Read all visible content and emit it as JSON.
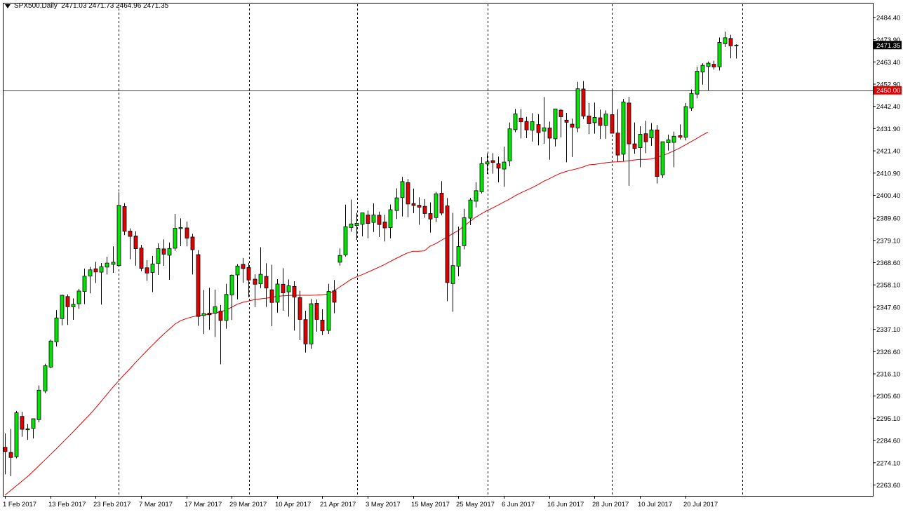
{
  "header": {
    "symbol": "SPX500,Daily",
    "ohlc": "2471.03 2471.73 2464.96 2471.35"
  },
  "chart_data": {
    "type": "candlestick",
    "symbol": "SPX500",
    "timeframe": "Daily",
    "ylim": [
      2258.8,
      2488.0
    ],
    "y_ticks": [
      "2484.40",
      "2473.90",
      "2463.40",
      "2452.90",
      "2442.40",
      "2431.90",
      "2421.40",
      "2410.90",
      "2400.40",
      "2389.60",
      "2379.10",
      "2368.60",
      "2358.10",
      "2347.60",
      "2337.10",
      "2326.60",
      "2316.10",
      "2305.60",
      "2295.10",
      "2284.60",
      "2274.10",
      "2263.60"
    ],
    "x_ticks": [
      {
        "label": "1 Feb 2017",
        "index": 0
      },
      {
        "label": "13 Feb 2017",
        "index": 8
      },
      {
        "label": "23 Feb 2017",
        "index": 16
      },
      {
        "label": "7 Mar 2017",
        "index": 24
      },
      {
        "label": "17 Mar 2017",
        "index": 32
      },
      {
        "label": "29 Mar 2017",
        "index": 40
      },
      {
        "label": "10 Apr 2017",
        "index": 48
      },
      {
        "label": "21 Apr 2017",
        "index": 56
      },
      {
        "label": "3 May 2017",
        "index": 64
      },
      {
        "label": "15 May 2017",
        "index": 72
      },
      {
        "label": "25 May 2017",
        "index": 80
      },
      {
        "label": "6 Jun 2017",
        "index": 88
      },
      {
        "label": "16 Jun 2017",
        "index": 96
      },
      {
        "label": "28 Jun 2017",
        "index": 104
      },
      {
        "label": "10 Jul 2017",
        "index": 112
      },
      {
        "label": "20 Jul 2017",
        "index": 120
      }
    ],
    "period_separators": [
      20,
      43,
      62,
      85,
      107,
      130
    ],
    "horizontal_line": {
      "value": 2450.0,
      "label": "2450.00",
      "color": "#e00000"
    },
    "current_price": {
      "value": 2471.35,
      "label": "2471.35"
    },
    "colors": {
      "bull": "#00e600",
      "bear": "#e00000",
      "wick": "#000000",
      "ma": "#e00000"
    },
    "candles": [
      [
        2281.4,
        2288.0,
        2268.6,
        2279.4
      ],
      [
        2279.0,
        2290.1,
        2267.8,
        2276.6
      ],
      [
        2277.0,
        2298.6,
        2276.2,
        2297.7
      ],
      [
        2296.0,
        2298.2,
        2286.4,
        2289.9
      ],
      [
        2289.7,
        2292.3,
        2285.0,
        2290.1
      ],
      [
        2290.3,
        2293.6,
        2285.6,
        2294.9
      ],
      [
        2294.5,
        2310.6,
        2293.2,
        2308.4
      ],
      [
        2308.0,
        2320.8,
        2307.0,
        2319.9
      ],
      [
        2319.3,
        2332.3,
        2318.8,
        2331.6
      ],
      [
        2331.2,
        2346.2,
        2329.0,
        2342.5
      ],
      [
        2342.2,
        2353.5,
        2339.0,
        2353.2
      ],
      [
        2352.6,
        2353.6,
        2339.2,
        2347.8
      ],
      [
        2347.8,
        2351.7,
        2341.6,
        2348.9
      ],
      [
        2349.2,
        2356.2,
        2346.8,
        2355.2
      ],
      [
        2355.0,
        2365.8,
        2349.0,
        2362.2
      ],
      [
        2362.3,
        2366.6,
        2354.1,
        2365.2
      ],
      [
        2365.7,
        2369.0,
        2359.0,
        2364.2
      ],
      [
        2364.1,
        2368.4,
        2348.8,
        2366.7
      ],
      [
        2366.5,
        2371.4,
        2363.0,
        2368.4
      ],
      [
        2367.8,
        2376.3,
        2363.8,
        2368.8
      ],
      [
        2367.2,
        2401.8,
        2366.6,
        2395.7
      ],
      [
        2395.1,
        2396.7,
        2381.6,
        2383.4
      ],
      [
        2383.5,
        2384.8,
        2370.2,
        2381.0
      ],
      [
        2381.2,
        2383.4,
        2367.2,
        2375.2
      ],
      [
        2375.5,
        2377.0,
        2364.6,
        2365.9
      ],
      [
        2366.2,
        2369.8,
        2360.0,
        2363.7
      ],
      [
        2364.0,
        2371.8,
        2354.7,
        2368.0
      ],
      [
        2368.2,
        2377.7,
        2362.8,
        2375.2
      ],
      [
        2375.1,
        2379.6,
        2367.1,
        2372.6
      ],
      [
        2372.1,
        2378.1,
        2360.5,
        2375.3
      ],
      [
        2375.4,
        2391.6,
        2374.2,
        2384.8
      ],
      [
        2384.7,
        2389.5,
        2376.4,
        2385.2
      ],
      [
        2385.0,
        2388.0,
        2376.3,
        2380.2
      ],
      [
        2380.7,
        2382.2,
        2363.0,
        2374.7
      ],
      [
        2372.4,
        2374.5,
        2338.8,
        2343.2
      ],
      [
        2343.6,
        2355.7,
        2334.9,
        2344.6
      ],
      [
        2344.8,
        2356.7,
        2336.9,
        2344.0
      ],
      [
        2344.7,
        2355.9,
        2333.5,
        2347.8
      ],
      [
        2345.7,
        2348.6,
        2320.6,
        2341.3
      ],
      [
        2341.3,
        2358.6,
        2337.4,
        2353.6
      ],
      [
        2353.3,
        2363.0,
        2341.5,
        2362.7
      ],
      [
        2362.8,
        2367.9,
        2351.3,
        2367.0
      ],
      [
        2367.8,
        2370.8,
        2359.1,
        2365.8
      ],
      [
        2366.3,
        2368.5,
        2352.3,
        2360.4
      ],
      [
        2360.8,
        2363.1,
        2347.6,
        2358.4
      ],
      [
        2358.6,
        2375.9,
        2356.6,
        2363.1
      ],
      [
        2362.1,
        2368.3,
        2347.7,
        2356.6
      ],
      [
        2355.8,
        2367.6,
        2338.6,
        2349.8
      ],
      [
        2349.9,
        2360.8,
        2345.0,
        2358.5
      ],
      [
        2358.4,
        2366.0,
        2345.9,
        2354.3
      ],
      [
        2354.8,
        2360.7,
        2343.1,
        2357.7
      ],
      [
        2357.4,
        2359.8,
        2336.5,
        2352.3
      ],
      [
        2352.1,
        2355.3,
        2332.0,
        2341.8
      ],
      [
        2341.7,
        2345.9,
        2326.1,
        2330.2
      ],
      [
        2330.2,
        2351.4,
        2327.9,
        2349.2
      ],
      [
        2349.4,
        2351.2,
        2336.0,
        2341.8
      ],
      [
        2341.5,
        2346.6,
        2334.4,
        2336.4
      ],
      [
        2336.6,
        2358.6,
        2335.0,
        2355.0
      ],
      [
        2355.3,
        2360.4,
        2344.7,
        2349.9
      ],
      [
        2368.8,
        2375.3,
        2367.2,
        2372.0
      ],
      [
        2372.3,
        2396.0,
        2371.5,
        2385.6
      ],
      [
        2385.2,
        2398.4,
        2383.2,
        2386.9
      ],
      [
        2386.1,
        2392.1,
        2379.3,
        2387.2
      ],
      [
        2386.7,
        2391.3,
        2381.0,
        2392.1
      ],
      [
        2391.1,
        2393.2,
        2380.1,
        2387.1
      ],
      [
        2387.6,
        2396.6,
        2383.1,
        2391.1
      ],
      [
        2391.0,
        2392.7,
        2380.7,
        2386.6
      ],
      [
        2387.8,
        2391.2,
        2378.6,
        2385.0
      ],
      [
        2385.1,
        2396.1,
        2380.1,
        2393.6
      ],
      [
        2393.2,
        2403.7,
        2389.2,
        2399.2
      ],
      [
        2399.3,
        2409.1,
        2390.4,
        2406.9
      ],
      [
        2406.4,
        2408.1,
        2390.1,
        2396.3
      ],
      [
        2396.5,
        2403.6,
        2392.0,
        2395.6
      ],
      [
        2395.7,
        2399.5,
        2386.5,
        2394.8
      ],
      [
        2395.2,
        2398.6,
        2389.8,
        2391.8
      ],
      [
        2391.8,
        2397.1,
        2382.8,
        2389.2
      ],
      [
        2389.9,
        2402.0,
        2387.8,
        2401.1
      ],
      [
        2401.4,
        2407.1,
        2391.0,
        2392.0
      ],
      [
        2395.4,
        2399.1,
        2350.4,
        2359.2
      ],
      [
        2358.7,
        2392.1,
        2345.4,
        2367.2
      ],
      [
        2366.9,
        2385.6,
        2362.2,
        2376.2
      ],
      [
        2376.6,
        2394.0,
        2374.9,
        2389.8
      ],
      [
        2389.6,
        2399.2,
        2386.3,
        2398.2
      ],
      [
        2397.6,
        2406.6,
        2394.7,
        2402.6
      ],
      [
        2402.1,
        2418.4,
        2401.3,
        2415.4
      ],
      [
        2415.2,
        2420.2,
        2410.5,
        2416.2
      ],
      [
        2416.8,
        2420.3,
        2410.6,
        2415.9
      ],
      [
        2415.3,
        2418.7,
        2406.5,
        2413.2
      ],
      [
        2412.8,
        2423.4,
        2404.4,
        2416.1
      ],
      [
        2416.6,
        2434.8,
        2414.1,
        2431.8
      ],
      [
        2431.4,
        2441.2,
        2430.2,
        2438.9
      ],
      [
        2436.9,
        2441.2,
        2427.3,
        2435.1
      ],
      [
        2435.3,
        2437.5,
        2427.4,
        2431.3
      ],
      [
        2431.2,
        2439.2,
        2425.8,
        2435.2
      ],
      [
        2433.8,
        2438.7,
        2424.0,
        2430.0
      ],
      [
        2430.7,
        2446.8,
        2424.8,
        2432.3
      ],
      [
        2432.2,
        2435.2,
        2417.2,
        2427.4
      ],
      [
        2427.1,
        2441.2,
        2423.5,
        2441.2
      ],
      [
        2440.6,
        2441.2,
        2427.8,
        2437.5
      ],
      [
        2435.9,
        2439.3,
        2416.0,
        2434.9
      ],
      [
        2434.0,
        2436.6,
        2418.5,
        2432.6
      ],
      [
        2432.2,
        2454.0,
        2430.2,
        2450.7
      ],
      [
        2450.6,
        2454.4,
        2436.4,
        2437.8
      ],
      [
        2437.9,
        2444.0,
        2429.3,
        2434.2
      ],
      [
        2434.7,
        2444.2,
        2429.5,
        2437.2
      ],
      [
        2437.0,
        2440.9,
        2427.0,
        2433.4
      ],
      [
        2433.4,
        2440.5,
        2427.1,
        2438.8
      ],
      [
        2438.5,
        2450.2,
        2430.6,
        2429.7
      ],
      [
        2429.8,
        2441.0,
        2416.3,
        2419.4
      ],
      [
        2419.8,
        2445.9,
        2416.6,
        2444.5
      ],
      [
        2444.0,
        2446.9,
        2404.9,
        2424.7
      ],
      [
        2424.7,
        2434.8,
        2420.0,
        2422.5
      ],
      [
        2422.9,
        2433.0,
        2413.7,
        2429.2
      ],
      [
        2429.5,
        2435.6,
        2420.3,
        2425.7
      ],
      [
        2427.5,
        2434.5,
        2423.8,
        2431.3
      ],
      [
        2431.3,
        2433.6,
        2406.0,
        2409.3
      ],
      [
        2410.1,
        2424.0,
        2408.6,
        2425.7
      ],
      [
        2425.2,
        2429.1,
        2421.5,
        2426.6
      ],
      [
        2425.4,
        2430.5,
        2413.7,
        2428.3
      ],
      [
        2428.6,
        2433.9,
        2426.8,
        2427.8
      ],
      [
        2427.8,
        2444.0,
        2426.3,
        2442.3
      ],
      [
        2441.6,
        2450.4,
        2440.3,
        2448.5
      ],
      [
        2448.2,
        2461.1,
        2446.2,
        2459.0
      ],
      [
        2458.6,
        2462.7,
        2452.7,
        2461.8
      ],
      [
        2461.2,
        2463.6,
        2450.0,
        2462.8
      ],
      [
        2462.3,
        2464.0,
        2459.8,
        2461.0
      ],
      [
        2461.1,
        2474.9,
        2459.4,
        2472.6
      ],
      [
        2472.0,
        2477.7,
        2470.5,
        2474.8
      ],
      [
        2474.5,
        2476.2,
        2465.1,
        2471.0
      ],
      [
        2471.03,
        2471.73,
        2464.96,
        2471.35
      ]
    ],
    "ma_values": [
      2258.8,
      2261.0,
      2263.2,
      2265.4,
      2267.6,
      2270.1,
      2272.7,
      2275.3,
      2277.9,
      2280.5,
      2283.2,
      2285.9,
      2288.6,
      2291.4,
      2294.2,
      2297.0,
      2300.0,
      2303.2,
      2306.4,
      2309.6,
      2312.6,
      2315.6,
      2318.4,
      2321.3,
      2324.1,
      2326.9,
      2329.6,
      2332.3,
      2334.8,
      2337.2,
      2339.6,
      2341.2,
      2342.2,
      2343.0,
      2343.5,
      2343.9,
      2344.3,
      2344.8,
      2345.4,
      2346.2,
      2347.6,
      2349.0,
      2349.9,
      2350.5,
      2351.1,
      2351.5,
      2351.8,
      2352.2,
      2352.7,
      2352.9,
      2353.1,
      2353.2,
      2353.2,
      2353.2,
      2353.2,
      2353.3,
      2353.5,
      2353.8,
      2355.2,
      2357.0,
      2358.8,
      2360.6,
      2361.9,
      2362.9,
      2364.1,
      2365.3,
      2366.5,
      2367.8,
      2369.2,
      2370.6,
      2371.9,
      2373.2,
      2374.0,
      2374.0,
      2374.2,
      2376.4,
      2377.6,
      2379.2,
      2380.7,
      2382.3,
      2383.8,
      2386.0,
      2388.0,
      2390.0,
      2391.6,
      2393.1,
      2394.4,
      2395.8,
      2397.2,
      2398.6,
      2400.2,
      2401.6,
      2402.8,
      2404.0,
      2405.4,
      2407.0,
      2408.2,
      2409.6,
      2410.8,
      2411.7,
      2412.4,
      2413.0,
      2413.8,
      2414.8,
      2415.0,
      2415.4,
      2415.8,
      2416.1,
      2416.2,
      2416.4,
      2416.7,
      2417.1,
      2417.4,
      2417.4,
      2417.6,
      2418.3,
      2419.2,
      2420.2,
      2421.4,
      2422.7,
      2424.2,
      2425.7,
      2427.2,
      2428.8,
      2430.2
    ]
  }
}
